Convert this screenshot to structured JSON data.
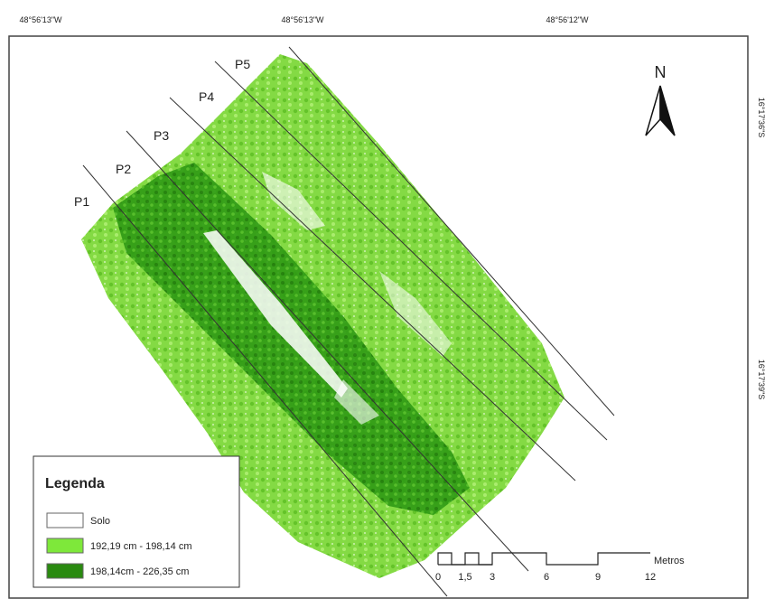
{
  "coordinates": {
    "top": [
      "48°56'13\"W",
      "48°56'13\"W",
      "48°56'12\"W"
    ],
    "right": [
      "16°17'36\"S",
      "16°17'39\"S"
    ]
  },
  "plots": [
    "P1",
    "P2",
    "P3",
    "P4",
    "P5"
  ],
  "north": "N",
  "legend": {
    "title": "Legenda",
    "items": [
      "Solo",
      "192,19 cm - 198,14 cm",
      "198,14cm - 226,35 cm"
    ]
  },
  "scale": {
    "labels": [
      "0",
      "1,5",
      "3",
      "6",
      "9",
      "12"
    ],
    "unit": "Metros"
  }
}
